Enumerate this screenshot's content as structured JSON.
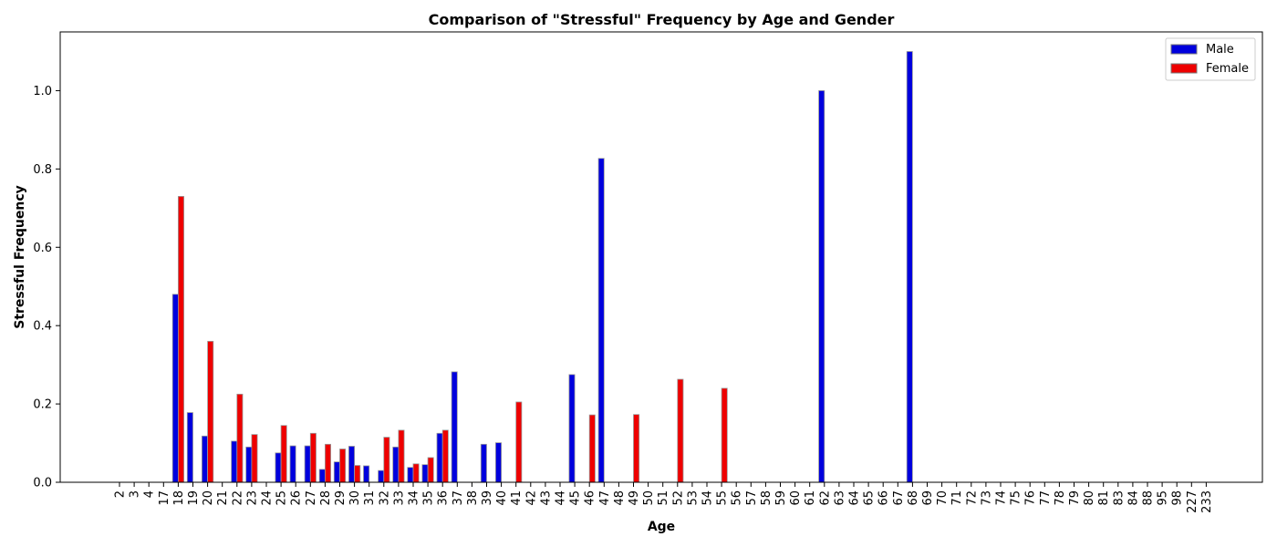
{
  "chart_data": {
    "type": "bar",
    "title": "Comparison of \"Stressful\" Frequency by Age and Gender",
    "xlabel": "Age",
    "ylabel": "Stressful Frequency",
    "ylim": [
      0,
      1.15
    ],
    "yticks": [
      "0.0",
      "0.2",
      "0.4",
      "0.6",
      "0.8",
      "1.0"
    ],
    "grid": false,
    "legend_position": "top-right",
    "categories": [
      "2",
      "3",
      "4",
      "17",
      "18",
      "19",
      "20",
      "21",
      "22",
      "23",
      "24",
      "25",
      "26",
      "27",
      "28",
      "29",
      "30",
      "31",
      "32",
      "33",
      "34",
      "35",
      "36",
      "37",
      "38",
      "39",
      "40",
      "41",
      "42",
      "43",
      "44",
      "45",
      "46",
      "47",
      "48",
      "49",
      "50",
      "51",
      "52",
      "53",
      "54",
      "55",
      "56",
      "57",
      "58",
      "59",
      "60",
      "61",
      "62",
      "63",
      "64",
      "65",
      "66",
      "67",
      "68",
      "69",
      "70",
      "71",
      "72",
      "73",
      "74",
      "75",
      "76",
      "77",
      "78",
      "79",
      "80",
      "81",
      "83",
      "84",
      "88",
      "95",
      "98",
      "227",
      "233"
    ],
    "series": [
      {
        "name": "Male",
        "color": "#0000dd",
        "values": [
          0,
          0,
          0,
          0,
          0.48,
          0.178,
          0.118,
          0,
          0.105,
          0.09,
          0,
          0.075,
          0.093,
          0.093,
          0.033,
          0.052,
          0.092,
          0.042,
          0.03,
          0.09,
          0.038,
          0.045,
          0.125,
          0.282,
          0,
          0.097,
          0.101,
          0,
          0,
          0,
          0,
          0.275,
          0,
          0.827,
          0,
          0,
          0,
          0,
          0,
          0,
          0,
          0,
          0,
          0,
          0,
          0,
          0,
          0,
          1.0,
          0,
          0,
          0,
          0,
          0,
          1.1,
          0,
          0,
          0,
          0,
          0,
          0,
          0,
          0,
          0,
          0,
          0,
          0,
          0,
          0,
          0,
          0,
          0,
          0,
          0,
          0
        ]
      },
      {
        "name": "Female",
        "color": "#ee0000",
        "values": [
          0,
          0,
          0,
          0,
          0.73,
          0,
          0.36,
          0,
          0.225,
          0.122,
          0,
          0.145,
          0,
          0.125,
          0.097,
          0.085,
          0.043,
          0,
          0.115,
          0.133,
          0.047,
          0.063,
          0.133,
          0,
          0,
          0,
          0,
          0.205,
          0,
          0,
          0,
          0,
          0.172,
          0,
          0,
          0.173,
          0,
          0,
          0.263,
          0,
          0,
          0.24,
          0,
          0,
          0,
          0,
          0,
          0,
          0,
          0,
          0,
          0,
          0,
          0,
          0,
          0,
          0,
          0,
          0,
          0,
          0,
          0,
          0,
          0,
          0,
          0,
          0,
          0,
          0,
          0,
          0,
          0,
          0,
          0,
          0
        ]
      }
    ]
  }
}
